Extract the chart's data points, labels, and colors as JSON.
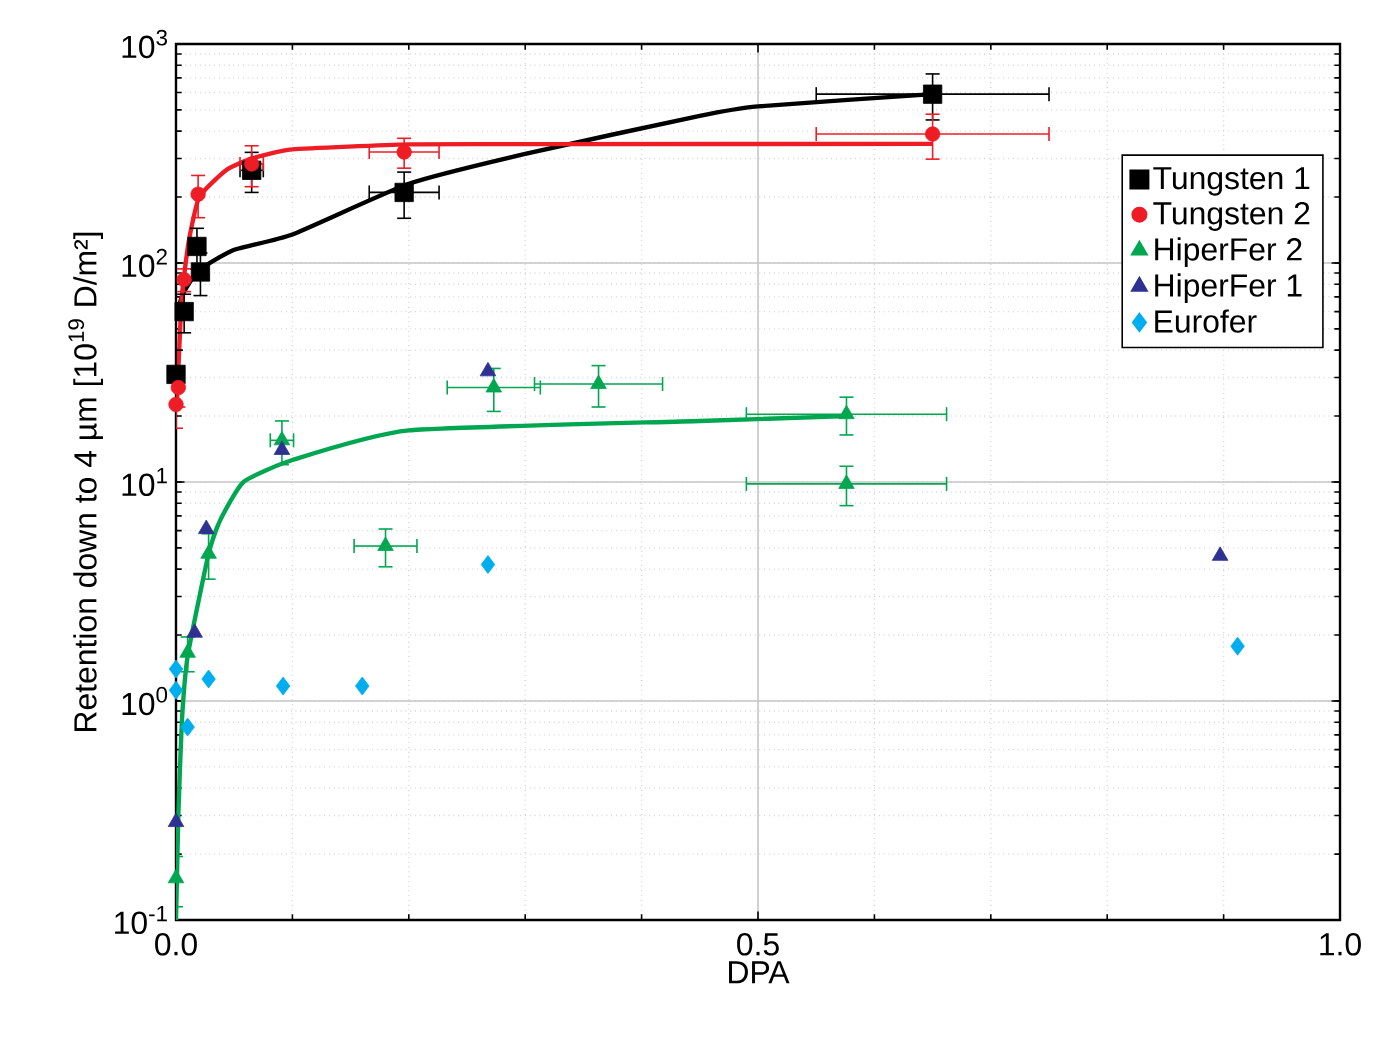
{
  "chart_data": {
    "type": "scatter",
    "xlabel": "DPA",
    "ylabel": "Retention down to 4 µm [10$^{19}$ D/m²]",
    "log": "y",
    "grid": true,
    "legend": "top right",
    "xlim": [
      0,
      1.0
    ],
    "ylim": [
      0.1,
      1000
    ],
    "xticks": [
      {
        "value": 0,
        "label": "0.0"
      },
      {
        "value": 0.1,
        "label": null
      },
      {
        "value": 0.2,
        "label": null
      },
      {
        "value": 0.3,
        "label": null
      },
      {
        "value": 0.4,
        "label": null
      },
      {
        "value": 0.5,
        "label": "0.5"
      },
      {
        "value": 0.6,
        "label": null
      },
      {
        "value": 0.7,
        "label": null
      },
      {
        "value": 0.8,
        "label": null
      },
      {
        "value": 0.9,
        "label": null
      },
      {
        "value": 1.0,
        "label": "1.0"
      }
    ],
    "yticks": [
      {
        "value": 0.1,
        "label": "10$^{-1}$"
      },
      {
        "value": 1,
        "label": "10$^{0}$"
      },
      {
        "value": 10,
        "label": "10$^{1}$"
      },
      {
        "value": 100,
        "label": "10$^{2}$"
      },
      {
        "value": 1000,
        "label": "10$^{3}$"
      }
    ],
    "series": [
      {
        "type": "line",
        "marker": "none",
        "color": "#000000",
        "x": [
          0.003,
          0.007,
          0.02,
          0.05,
          0.1,
          0.2,
          0.3,
          0.45,
          0.5,
          0.65
        ],
        "values": [
          65,
          74,
          93,
          115,
          135,
          230,
          315,
          470,
          519,
          590
        ]
      },
      {
        "type": "line",
        "marker": "none",
        "color": "#ee1c25",
        "x": [
          0.0,
          0.001,
          0.005,
          0.011,
          0.02,
          0.043,
          0.065,
          0.1,
          0.2,
          0.3,
          0.65
        ],
        "values": [
          22,
          25,
          70,
          126,
          200,
          265,
          300,
          330,
          348,
          349,
          350
        ]
      },
      {
        "type": "line",
        "marker": "none",
        "color": "#00a650",
        "x": [
          0.0,
          0.0005,
          0.002,
          0.005,
          0.01,
          0.028,
          0.038,
          0.058,
          0.1,
          0.2,
          0.45,
          0.576
        ],
        "values": [
          0.1,
          0.13,
          0.3,
          0.8,
          1.6,
          4.7,
          6.7,
          10,
          12.6,
          17.2,
          19,
          20
        ]
      },
      {
        "name": "Tungsten 1",
        "marker": "square",
        "color": "#000000",
        "x": [
          0.0,
          0.007,
          0.018,
          0.021,
          0.065,
          0.196,
          0.65
        ],
        "values": [
          31,
          60,
          119,
          91,
          265,
          210,
          590
        ],
        "errors": [
          9,
          12,
          25,
          20,
          55,
          50,
          140
        ],
        "xerrors": [
          null,
          null,
          null,
          null,
          0.01,
          0.03,
          0.1
        ]
      },
      {
        "name": "Tungsten 2",
        "marker": "circle",
        "color": "#ee1c25",
        "x": [
          0.0,
          0.002,
          0.007,
          0.019,
          0.065,
          0.196,
          0.65
        ],
        "values": [
          22.6,
          27,
          84,
          206,
          283,
          321,
          388
        ],
        "errors": [
          5,
          5,
          10,
          45,
          60,
          50,
          90
        ],
        "xerrors": [
          null,
          null,
          null,
          null,
          0.01,
          0.03,
          0.1
        ]
      },
      {
        "name": "HiperFer 2",
        "marker": "triangle",
        "color": "#00a650",
        "x": [
          0.0,
          0.01,
          0.028,
          0.091,
          0.18,
          0.273,
          0.363,
          0.576,
          0.576
        ],
        "values": [
          0.155,
          1.66,
          4.7,
          15.5,
          5.1,
          27,
          28,
          20.4,
          9.8
        ],
        "errors": [
          0.04,
          0.3,
          1.1,
          3.5,
          1,
          6,
          6,
          4,
          2
        ],
        "xerrors": [
          null,
          null,
          null,
          0.01,
          0.027,
          0.04,
          0.055,
          0.086,
          0.086
        ]
      },
      {
        "name": "HiperFer 1",
        "marker": "triangle-down",
        "color": "#2e3192",
        "x": [
          0.0,
          0.016,
          0.026,
          0.091,
          0.268,
          0.897
        ],
        "values": [
          0.28,
          2.05,
          6.1,
          14,
          32,
          4.6
        ]
      },
      {
        "name": "Eurofer",
        "marker": "diamond",
        "color": "#00aeef",
        "x": [
          0.0,
          0.0,
          0.01,
          0.028,
          0.092,
          0.16,
          0.268,
          0.912
        ],
        "values": [
          1.4,
          1.12,
          0.76,
          1.26,
          1.17,
          1.17,
          4.2,
          1.78
        ]
      }
    ]
  }
}
